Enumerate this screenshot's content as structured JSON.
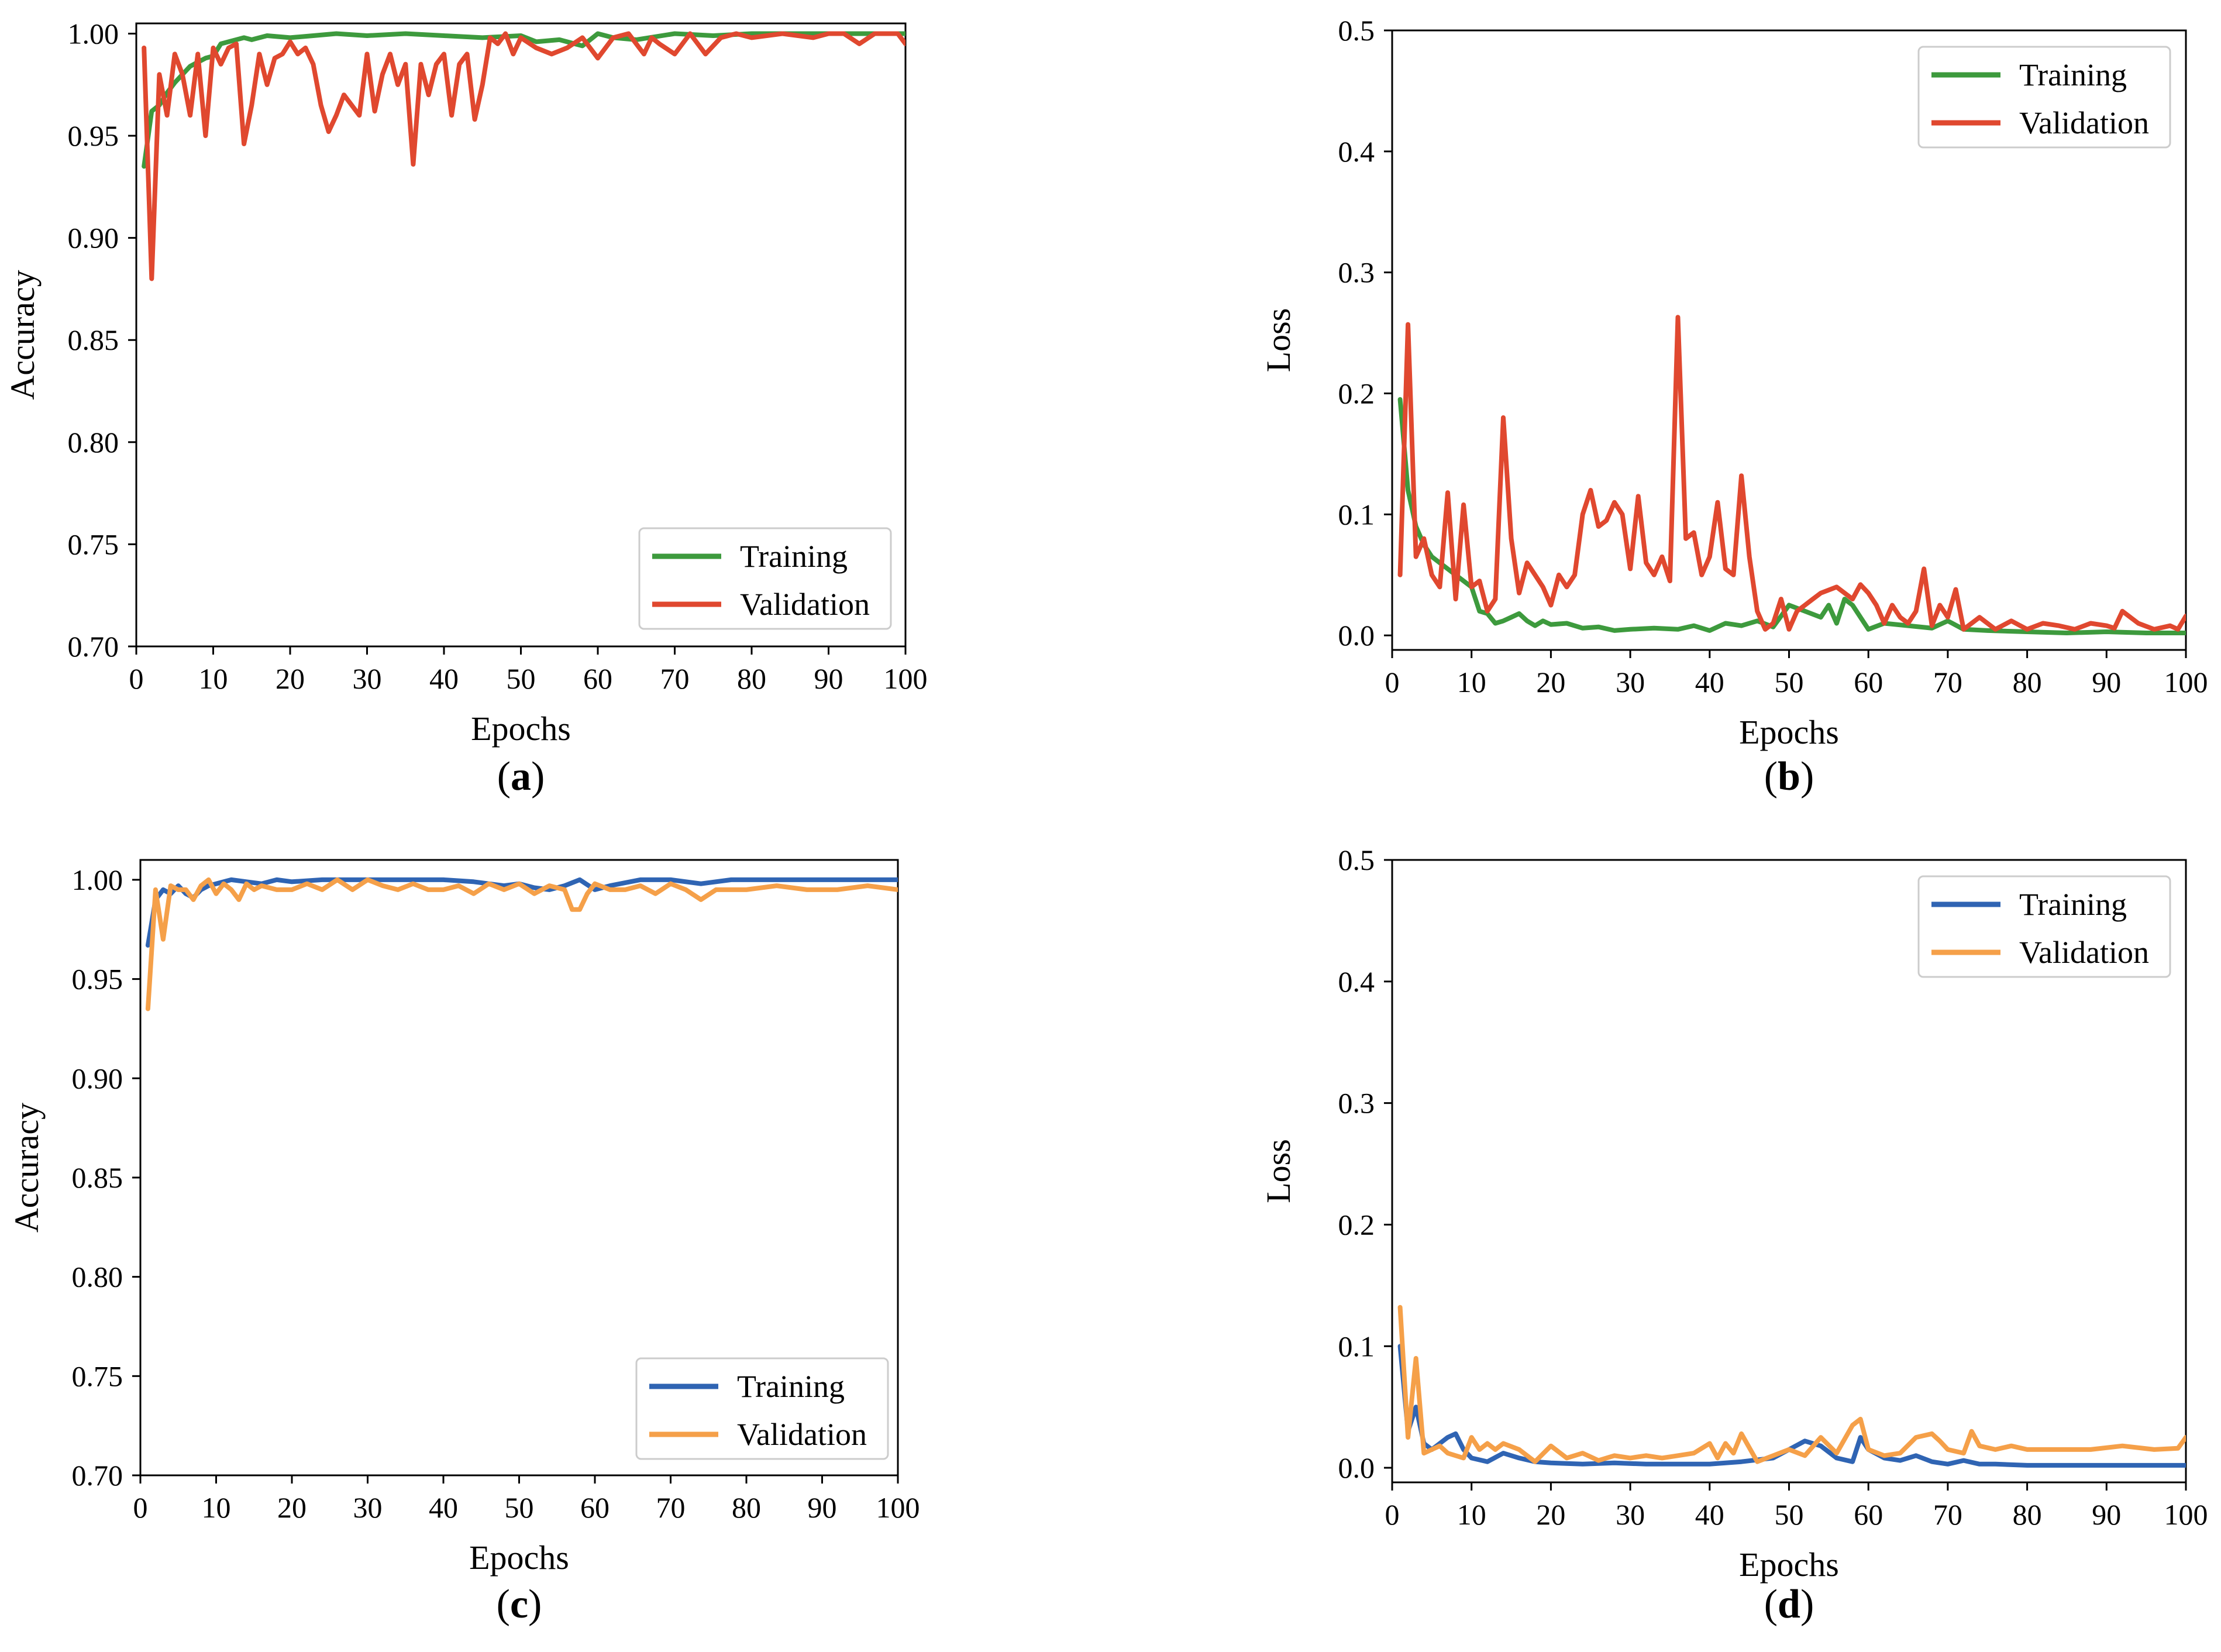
{
  "figure": {
    "panels": [
      "a",
      "b",
      "c",
      "d"
    ]
  },
  "chart_data": [
    {
      "id": "a",
      "type": "line",
      "panel_label": "a",
      "xlabel": "Epochs",
      "ylabel": "Accuracy",
      "xlim": [
        0,
        100
      ],
      "ylim": [
        0.7,
        1.005
      ],
      "xticks": [
        0,
        10,
        20,
        30,
        40,
        50,
        60,
        70,
        80,
        90,
        100
      ],
      "xtick_labels": [
        "0",
        "10",
        "20",
        "30",
        "40",
        "50",
        "60",
        "70",
        "80",
        "90",
        "100"
      ],
      "yticks": [
        0.7,
        0.75,
        0.8,
        0.85,
        0.9,
        0.95,
        1.0
      ],
      "ytick_labels": [
        "0.70",
        "0.75",
        "0.80",
        "0.85",
        "0.90",
        "0.95",
        "1.00"
      ],
      "legend_position": "lower-right",
      "series": [
        {
          "name": "Training",
          "color": "#3d9a3d",
          "x": [
            1,
            2,
            3,
            4,
            5,
            6,
            7,
            8,
            9,
            10,
            11,
            12,
            13,
            14,
            15,
            17,
            20,
            23,
            26,
            30,
            35,
            40,
            45,
            50,
            52,
            55,
            58,
            60,
            62,
            65,
            70,
            75,
            80,
            85,
            90,
            95,
            100
          ],
          "y": [
            0.935,
            0.962,
            0.965,
            0.971,
            0.976,
            0.98,
            0.984,
            0.986,
            0.988,
            0.989,
            0.995,
            0.996,
            0.997,
            0.998,
            0.997,
            0.999,
            0.998,
            0.999,
            1.0,
            0.999,
            1.0,
            0.999,
            0.998,
            0.999,
            0.996,
            0.997,
            0.994,
            1.0,
            0.998,
            0.997,
            1.0,
            0.999,
            1.0,
            1.0,
            1.0,
            1.0,
            1.0
          ]
        },
        {
          "name": "Validation",
          "color": "#e0482f",
          "x": [
            1,
            2,
            3,
            4,
            5,
            6,
            7,
            8,
            9,
            10,
            11,
            12,
            13,
            14,
            15,
            16,
            17,
            18,
            19,
            20,
            21,
            22,
            23,
            24,
            25,
            26,
            27,
            28,
            29,
            30,
            31,
            32,
            33,
            34,
            35,
            36,
            37,
            38,
            39,
            40,
            41,
            42,
            43,
            44,
            45,
            46,
            47,
            48,
            49,
            50,
            52,
            54,
            56,
            58,
            60,
            62,
            64,
            66,
            67,
            68,
            70,
            72,
            74,
            76,
            78,
            80,
            84,
            88,
            90,
            92,
            94,
            96,
            98,
            99,
            100
          ],
          "y": [
            0.993,
            0.88,
            0.98,
            0.96,
            0.99,
            0.98,
            0.96,
            0.99,
            0.95,
            0.993,
            0.985,
            0.993,
            0.995,
            0.946,
            0.965,
            0.99,
            0.975,
            0.988,
            0.99,
            0.996,
            0.99,
            0.993,
            0.985,
            0.965,
            0.952,
            0.96,
            0.97,
            0.965,
            0.96,
            0.99,
            0.962,
            0.98,
            0.99,
            0.975,
            0.985,
            0.936,
            0.985,
            0.97,
            0.985,
            0.99,
            0.96,
            0.985,
            0.99,
            0.958,
            0.975,
            0.998,
            0.995,
            1.0,
            0.99,
            0.998,
            0.993,
            0.99,
            0.993,
            0.998,
            0.988,
            0.998,
            1.0,
            0.99,
            0.998,
            0.995,
            0.99,
            1.0,
            0.99,
            0.998,
            1.0,
            0.998,
            1.0,
            0.998,
            1.0,
            1.0,
            0.995,
            1.0,
            1.0,
            1.0,
            0.995
          ]
        }
      ]
    },
    {
      "id": "b",
      "type": "line",
      "panel_label": "b",
      "xlabel": "Epochs",
      "ylabel": "Loss",
      "xlim": [
        0,
        100
      ],
      "ylim": [
        -0.012,
        0.5
      ],
      "xticks": [
        0,
        10,
        20,
        30,
        40,
        50,
        60,
        70,
        80,
        90,
        100
      ],
      "xtick_labels": [
        "0",
        "10",
        "20",
        "30",
        "40",
        "50",
        "60",
        "70",
        "80",
        "90",
        "100"
      ],
      "yticks": [
        0.0,
        0.1,
        0.2,
        0.3,
        0.4,
        0.5
      ],
      "ytick_labels": [
        "0.0",
        "0.1",
        "0.2",
        "0.3",
        "0.4",
        "0.5"
      ],
      "legend_position": "top-right",
      "series": [
        {
          "name": "Training",
          "color": "#3d9a3d",
          "x": [
            1,
            2,
            3,
            4,
            5,
            6,
            7,
            8,
            9,
            10,
            11,
            12,
            13,
            14,
            15,
            16,
            17,
            18,
            19,
            20,
            22,
            24,
            26,
            28,
            30,
            33,
            36,
            38,
            40,
            42,
            44,
            46,
            48,
            50,
            52,
            54,
            55,
            56,
            57,
            58,
            60,
            62,
            65,
            68,
            70,
            72,
            75,
            80,
            85,
            90,
            95,
            100
          ],
          "y": [
            0.195,
            0.12,
            0.09,
            0.075,
            0.065,
            0.06,
            0.055,
            0.05,
            0.045,
            0.04,
            0.02,
            0.018,
            0.01,
            0.012,
            0.015,
            0.018,
            0.012,
            0.008,
            0.012,
            0.009,
            0.01,
            0.006,
            0.007,
            0.004,
            0.005,
            0.006,
            0.005,
            0.008,
            0.004,
            0.01,
            0.008,
            0.012,
            0.007,
            0.025,
            0.02,
            0.015,
            0.025,
            0.01,
            0.03,
            0.025,
            0.005,
            0.01,
            0.008,
            0.006,
            0.012,
            0.005,
            0.004,
            0.003,
            0.002,
            0.003,
            0.002,
            0.002
          ]
        },
        {
          "name": "Validation",
          "color": "#e0482f",
          "x": [
            1,
            2,
            3,
            4,
            5,
            6,
            7,
            8,
            9,
            10,
            11,
            12,
            13,
            14,
            15,
            16,
            17,
            18,
            19,
            20,
            21,
            22,
            23,
            24,
            25,
            26,
            27,
            28,
            29,
            30,
            31,
            32,
            33,
            34,
            35,
            36,
            37,
            38,
            39,
            40,
            41,
            42,
            43,
            44,
            45,
            46,
            47,
            48,
            49,
            50,
            51,
            52,
            53,
            54,
            56,
            58,
            59,
            60,
            61,
            62,
            63,
            64,
            65,
            66,
            67,
            68,
            69,
            70,
            71,
            72,
            74,
            76,
            78,
            80,
            82,
            84,
            86,
            88,
            90,
            91,
            92,
            94,
            96,
            98,
            99,
            100
          ],
          "y": [
            0.05,
            0.257,
            0.065,
            0.08,
            0.05,
            0.04,
            0.118,
            0.03,
            0.108,
            0.04,
            0.045,
            0.02,
            0.03,
            0.18,
            0.08,
            0.035,
            0.06,
            0.05,
            0.04,
            0.025,
            0.05,
            0.04,
            0.05,
            0.1,
            0.12,
            0.09,
            0.095,
            0.11,
            0.1,
            0.055,
            0.115,
            0.06,
            0.05,
            0.065,
            0.045,
            0.263,
            0.08,
            0.085,
            0.05,
            0.065,
            0.11,
            0.055,
            0.05,
            0.132,
            0.065,
            0.02,
            0.005,
            0.01,
            0.03,
            0.005,
            0.02,
            0.025,
            0.03,
            0.035,
            0.04,
            0.03,
            0.042,
            0.035,
            0.025,
            0.01,
            0.025,
            0.015,
            0.01,
            0.02,
            0.055,
            0.008,
            0.025,
            0.015,
            0.038,
            0.005,
            0.015,
            0.005,
            0.012,
            0.005,
            0.01,
            0.008,
            0.005,
            0.01,
            0.008,
            0.006,
            0.02,
            0.01,
            0.005,
            0.008,
            0.005,
            0.016
          ]
        }
      ]
    },
    {
      "id": "c",
      "type": "line",
      "panel_label": "c",
      "xlabel": "Epochs",
      "ylabel": "Accuracy",
      "xlim": [
        0,
        100
      ],
      "ylim": [
        0.7,
        1.01
      ],
      "xticks": [
        0,
        10,
        20,
        30,
        40,
        50,
        60,
        70,
        80,
        90,
        100
      ],
      "xtick_labels": [
        "0",
        "10",
        "20",
        "30",
        "40",
        "50",
        "60",
        "70",
        "80",
        "90",
        "100"
      ],
      "yticks": [
        0.7,
        0.75,
        0.8,
        0.85,
        0.9,
        0.95,
        1.0
      ],
      "ytick_labels": [
        "0.70",
        "0.75",
        "0.80",
        "0.85",
        "0.90",
        "0.95",
        "1.00"
      ],
      "legend_position": "lower-right",
      "series": [
        {
          "name": "Training",
          "color": "#2f64b3",
          "x": [
            1,
            2,
            3,
            4,
            5,
            6,
            7,
            8,
            9,
            10,
            12,
            14,
            16,
            18,
            20,
            24,
            28,
            32,
            36,
            40,
            44,
            48,
            50,
            52,
            54,
            56,
            58,
            60,
            62,
            66,
            70,
            74,
            78,
            82,
            86,
            90,
            94,
            100
          ],
          "y": [
            0.967,
            0.99,
            0.995,
            0.993,
            0.997,
            0.993,
            0.991,
            0.995,
            0.997,
            0.998,
            1.0,
            0.999,
            0.998,
            1.0,
            0.999,
            1.0,
            1.0,
            1.0,
            1.0,
            1.0,
            0.999,
            0.997,
            0.998,
            0.996,
            0.995,
            0.997,
            1.0,
            0.995,
            0.997,
            1.0,
            1.0,
            0.998,
            1.0,
            1.0,
            1.0,
            1.0,
            1.0,
            1.0
          ]
        },
        {
          "name": "Validation",
          "color": "#f5a049",
          "x": [
            1,
            2,
            3,
            4,
            5,
            6,
            7,
            8,
            9,
            10,
            11,
            12,
            13,
            14,
            15,
            16,
            18,
            20,
            22,
            24,
            26,
            28,
            30,
            32,
            34,
            36,
            38,
            40,
            42,
            44,
            46,
            48,
            50,
            52,
            54,
            56,
            57,
            58,
            59,
            60,
            62,
            64,
            66,
            68,
            70,
            72,
            74,
            76,
            80,
            84,
            88,
            92,
            96,
            100
          ],
          "y": [
            0.935,
            0.995,
            0.97,
            0.997,
            0.995,
            0.995,
            0.99,
            0.997,
            1.0,
            0.993,
            0.998,
            0.995,
            0.99,
            0.998,
            0.995,
            0.997,
            0.995,
            0.995,
            0.998,
            0.995,
            1.0,
            0.995,
            1.0,
            0.997,
            0.995,
            0.998,
            0.995,
            0.995,
            0.997,
            0.993,
            0.998,
            0.995,
            0.998,
            0.993,
            0.997,
            0.995,
            0.985,
            0.985,
            0.993,
            0.998,
            0.995,
            0.995,
            0.997,
            0.993,
            0.998,
            0.995,
            0.99,
            0.995,
            0.995,
            0.997,
            0.995,
            0.995,
            0.997,
            0.995
          ]
        }
      ]
    },
    {
      "id": "d",
      "type": "line",
      "panel_label": "d",
      "xlabel": "Epochs",
      "ylabel": "Loss",
      "xlim": [
        0,
        100
      ],
      "ylim": [
        -0.012,
        0.5
      ],
      "xticks": [
        0,
        10,
        20,
        30,
        40,
        50,
        60,
        70,
        80,
        90,
        100
      ],
      "xtick_labels": [
        "0",
        "10",
        "20",
        "30",
        "40",
        "50",
        "60",
        "70",
        "80",
        "90",
        "100"
      ],
      "yticks": [
        0.0,
        0.1,
        0.2,
        0.3,
        0.4,
        0.5
      ],
      "ytick_labels": [
        "0.0",
        "0.1",
        "0.2",
        "0.3",
        "0.4",
        "0.5"
      ],
      "legend_position": "top-right",
      "series": [
        {
          "name": "Training",
          "color": "#2f64b3",
          "x": [
            1,
            2,
            3,
            4,
            5,
            6,
            7,
            8,
            9,
            10,
            12,
            14,
            16,
            18,
            20,
            24,
            28,
            32,
            36,
            40,
            44,
            48,
            50,
            52,
            54,
            56,
            58,
            59,
            60,
            62,
            64,
            66,
            68,
            70,
            72,
            74,
            76,
            80,
            85,
            90,
            95,
            100
          ],
          "y": [
            0.1,
            0.03,
            0.05,
            0.02,
            0.015,
            0.02,
            0.025,
            0.028,
            0.015,
            0.008,
            0.005,
            0.012,
            0.008,
            0.005,
            0.004,
            0.003,
            0.004,
            0.003,
            0.003,
            0.003,
            0.005,
            0.008,
            0.015,
            0.022,
            0.018,
            0.008,
            0.005,
            0.025,
            0.015,
            0.008,
            0.006,
            0.01,
            0.005,
            0.003,
            0.006,
            0.003,
            0.003,
            0.002,
            0.002,
            0.002,
            0.002,
            0.002
          ]
        },
        {
          "name": "Validation",
          "color": "#f5a049",
          "x": [
            1,
            2,
            3,
            4,
            5,
            6,
            7,
            8,
            9,
            10,
            11,
            12,
            13,
            14,
            16,
            18,
            20,
            22,
            24,
            26,
            28,
            30,
            32,
            34,
            36,
            38,
            40,
            41,
            42,
            43,
            44,
            46,
            48,
            50,
            52,
            54,
            56,
            58,
            59,
            60,
            62,
            64,
            66,
            68,
            69,
            70,
            72,
            73,
            74,
            76,
            78,
            80,
            84,
            88,
            92,
            96,
            99,
            100
          ],
          "y": [
            0.132,
            0.025,
            0.09,
            0.012,
            0.015,
            0.018,
            0.012,
            0.01,
            0.008,
            0.025,
            0.015,
            0.02,
            0.015,
            0.02,
            0.015,
            0.005,
            0.018,
            0.008,
            0.012,
            0.006,
            0.01,
            0.008,
            0.01,
            0.008,
            0.01,
            0.012,
            0.02,
            0.008,
            0.02,
            0.012,
            0.028,
            0.005,
            0.01,
            0.015,
            0.01,
            0.025,
            0.012,
            0.035,
            0.04,
            0.015,
            0.01,
            0.012,
            0.025,
            0.028,
            0.022,
            0.015,
            0.012,
            0.03,
            0.018,
            0.015,
            0.018,
            0.015,
            0.015,
            0.015,
            0.018,
            0.015,
            0.016,
            0.025
          ]
        }
      ]
    }
  ]
}
